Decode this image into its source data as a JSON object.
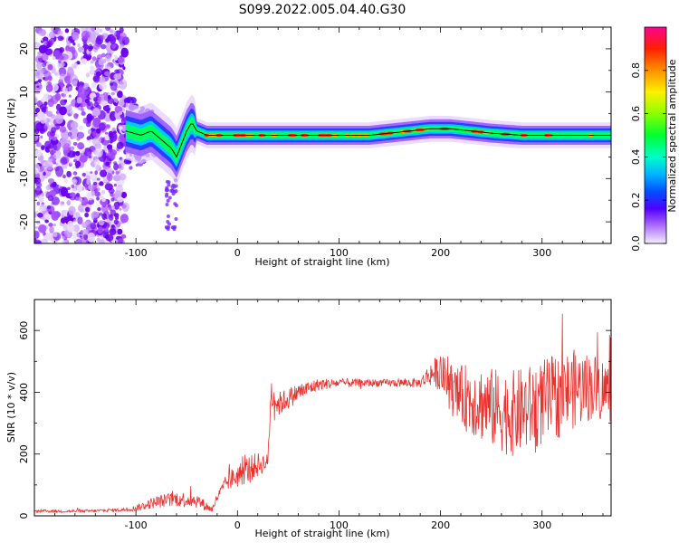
{
  "title": "S099.2022.005.04.40.G30",
  "colors": {
    "snr_line": "#e8322e",
    "trace_line": "#000000"
  },
  "chart_data": [
    {
      "type": "heatmap",
      "xlabel": "Height of straight line (km)",
      "ylabel": "Frequency (Hz)",
      "xlim": [
        -200,
        368
      ],
      "ylim": [
        -25,
        25
      ],
      "xticks": [
        -100,
        0,
        100,
        200,
        300
      ],
      "yticks": [
        -20,
        -10,
        0,
        10,
        20
      ],
      "colorbar": {
        "label": "Normalized spectral amplitude",
        "ticks": [
          0.0,
          0.2,
          0.4,
          0.6,
          0.8
        ],
        "range": [
          0,
          1
        ],
        "colormap": "hsv"
      },
      "ridge": {
        "x": [
          -110,
          -95,
          -85,
          -75,
          -65,
          -60,
          -55,
          -50,
          -45,
          -40,
          -30,
          -20,
          0,
          50,
          100,
          130,
          150,
          170,
          190,
          210,
          230,
          250,
          280,
          300,
          330,
          368
        ],
        "y": [
          1,
          0,
          1,
          -1,
          -3,
          -5,
          -2,
          1,
          3,
          1,
          0,
          0,
          0,
          0,
          0,
          0,
          0.5,
          1,
          1.5,
          1.5,
          1,
          0.5,
          0,
          0,
          0,
          0
        ]
      }
    },
    {
      "type": "line",
      "xlabel": "Height of straight line (km)",
      "ylabel": "SNR (10 * v/v)",
      "xlim": [
        -200,
        368
      ],
      "ylim": [
        0,
        700
      ],
      "xticks": [
        -100,
        0,
        100,
        200,
        300
      ],
      "yticks": [
        0,
        200,
        400,
        600
      ],
      "envelope": {
        "x": [
          -200,
          -150,
          -110,
          -100,
          -80,
          -60,
          -40,
          -25,
          -20,
          -10,
          0,
          10,
          20,
          30,
          33,
          40,
          60,
          80,
          100,
          140,
          180,
          190,
          200,
          215,
          230,
          250,
          270,
          290,
          310,
          330,
          350,
          368
        ],
        "y": [
          15,
          15,
          20,
          25,
          45,
          55,
          50,
          20,
          60,
          110,
          130,
          150,
          165,
          175,
          400,
          360,
          400,
          425,
          430,
          430,
          430,
          460,
          465,
          390,
          380,
          350,
          330,
          350,
          380,
          410,
          420,
          400
        ],
        "spread": [
          5,
          5,
          6,
          10,
          20,
          25,
          25,
          10,
          15,
          30,
          40,
          45,
          40,
          25,
          60,
          40,
          30,
          20,
          15,
          12,
          15,
          40,
          60,
          90,
          120,
          130,
          140,
          140,
          140,
          130,
          110,
          100
        ]
      }
    }
  ]
}
